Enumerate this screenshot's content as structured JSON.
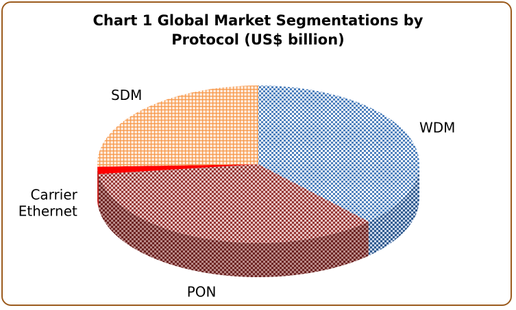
{
  "chart_data": {
    "type": "pie",
    "style": "3d",
    "title_lines": [
      "Chart 1 Global Market Segmentations by",
      "Protocol (US$ billion)"
    ],
    "categories": [
      "WDM",
      "PON",
      "Carrier Ethernet",
      "SDM"
    ],
    "label_lines": [
      [
        "WDM"
      ],
      [
        "PON"
      ],
      [
        "Carrier",
        "Ethernet"
      ],
      [
        "SDM"
      ]
    ],
    "values": [
      38,
      35,
      1.5,
      25.5
    ],
    "colors": [
      "#4f81bd",
      "#953735",
      "#ff0000",
      "#f79646"
    ],
    "legend": "none",
    "data_labels": "category name"
  }
}
